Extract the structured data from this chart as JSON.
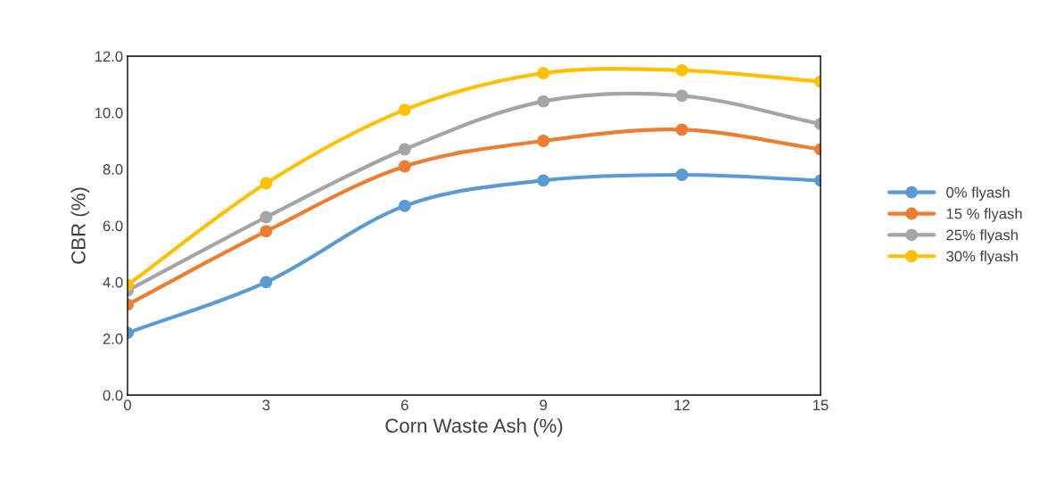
{
  "chart_data": {
    "type": "line",
    "xlabel": "Corn Waste Ash (%)",
    "ylabel": "CBR (%)",
    "x": [
      0,
      3,
      6,
      9,
      12,
      15
    ],
    "series": [
      {
        "name": "0% flyash",
        "color": "#5b9bd5",
        "values": [
          2.2,
          4.0,
          6.7,
          7.6,
          7.8,
          7.6
        ]
      },
      {
        "name": "15 % flyash",
        "color": "#ed7d31",
        "values": [
          3.2,
          5.8,
          8.1,
          9.0,
          9.4,
          8.7
        ]
      },
      {
        "name": "25% flyash",
        "color": "#a5a5a5",
        "values": [
          3.7,
          6.3,
          8.7,
          10.4,
          10.6,
          9.6
        ]
      },
      {
        "name": "30% flyash",
        "color": "#ffc000",
        "values": [
          3.9,
          7.5,
          10.1,
          11.4,
          11.5,
          11.1
        ]
      }
    ],
    "xlim": [
      0,
      15
    ],
    "xticks": [
      0,
      3,
      6,
      9,
      12,
      15
    ],
    "ylim": [
      0,
      12
    ],
    "yticks": [
      {
        "value": 0,
        "label": "0.0"
      },
      {
        "value": 2,
        "label": "2.0"
      },
      {
        "value": 4,
        "label": "4.0"
      },
      {
        "value": 6,
        "label": "6.0"
      },
      {
        "value": 8,
        "label": "8.0"
      },
      {
        "value": 10,
        "label": "10.0"
      },
      {
        "value": 12,
        "label": "12.0"
      }
    ],
    "grid": false,
    "legend": "right",
    "marker": "circle",
    "line_style": "solid"
  }
}
